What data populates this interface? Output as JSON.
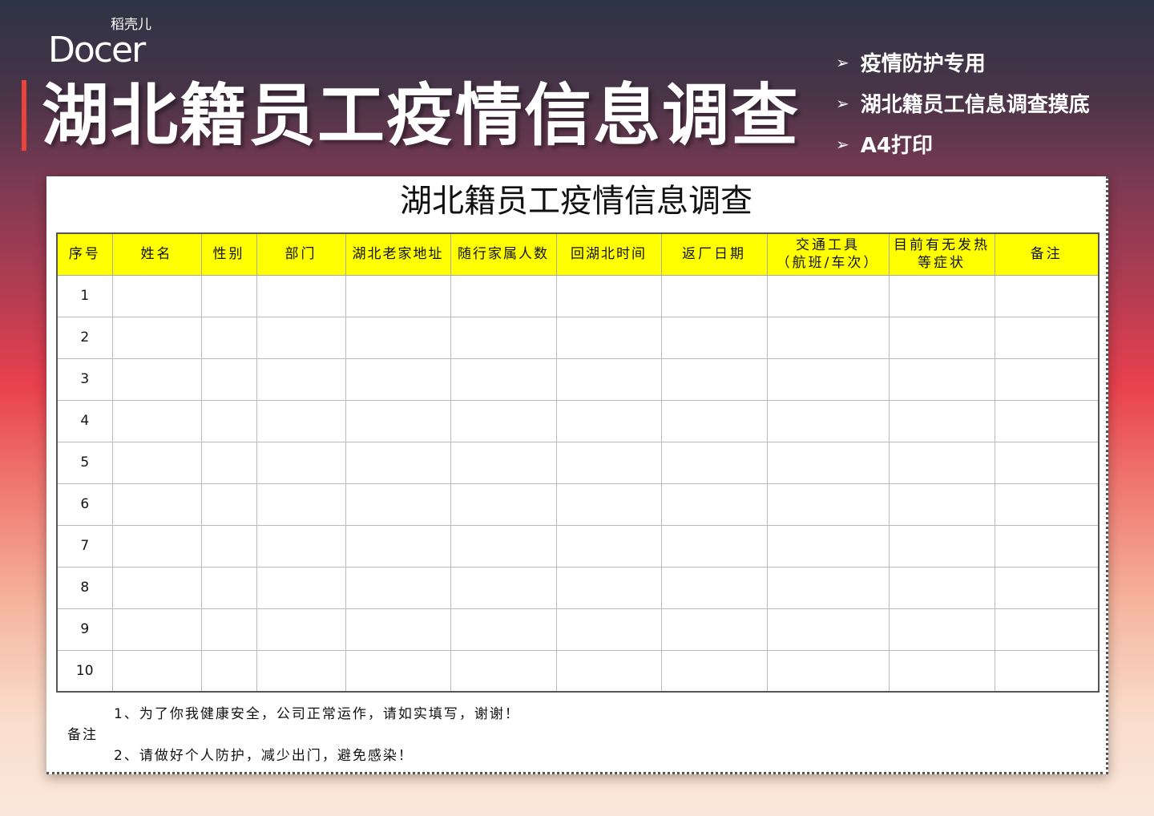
{
  "logo": {
    "sub": "稻壳儿",
    "word": "Docer"
  },
  "banner_title": "湖北籍员工疫情信息调查",
  "features": [
    "疫情防护专用",
    "湖北籍员工信息调查摸底",
    "A4打印"
  ],
  "sheet": {
    "title": "湖北籍员工疫情信息调查",
    "headers": [
      "序号",
      "姓名",
      "性别",
      "部门",
      "湖北老家地址",
      "随行家属人数",
      "回湖北时间",
      "返厂日期",
      "交通工具\n（航班/车次）",
      "目前有无发热\n等症状",
      "备注"
    ],
    "rows": [
      "1",
      "2",
      "3",
      "4",
      "5",
      "6",
      "7",
      "8",
      "9",
      "10"
    ],
    "note_label": "备注",
    "notes": [
      "1、为了你我健康安全，公司正常运作，请如实填写，谢谢！",
      "2、请做好个人防护，减少出门，避免感染！"
    ]
  },
  "colors": {
    "header_fill": "#ffff00",
    "accent_bar": "#e8443a"
  }
}
